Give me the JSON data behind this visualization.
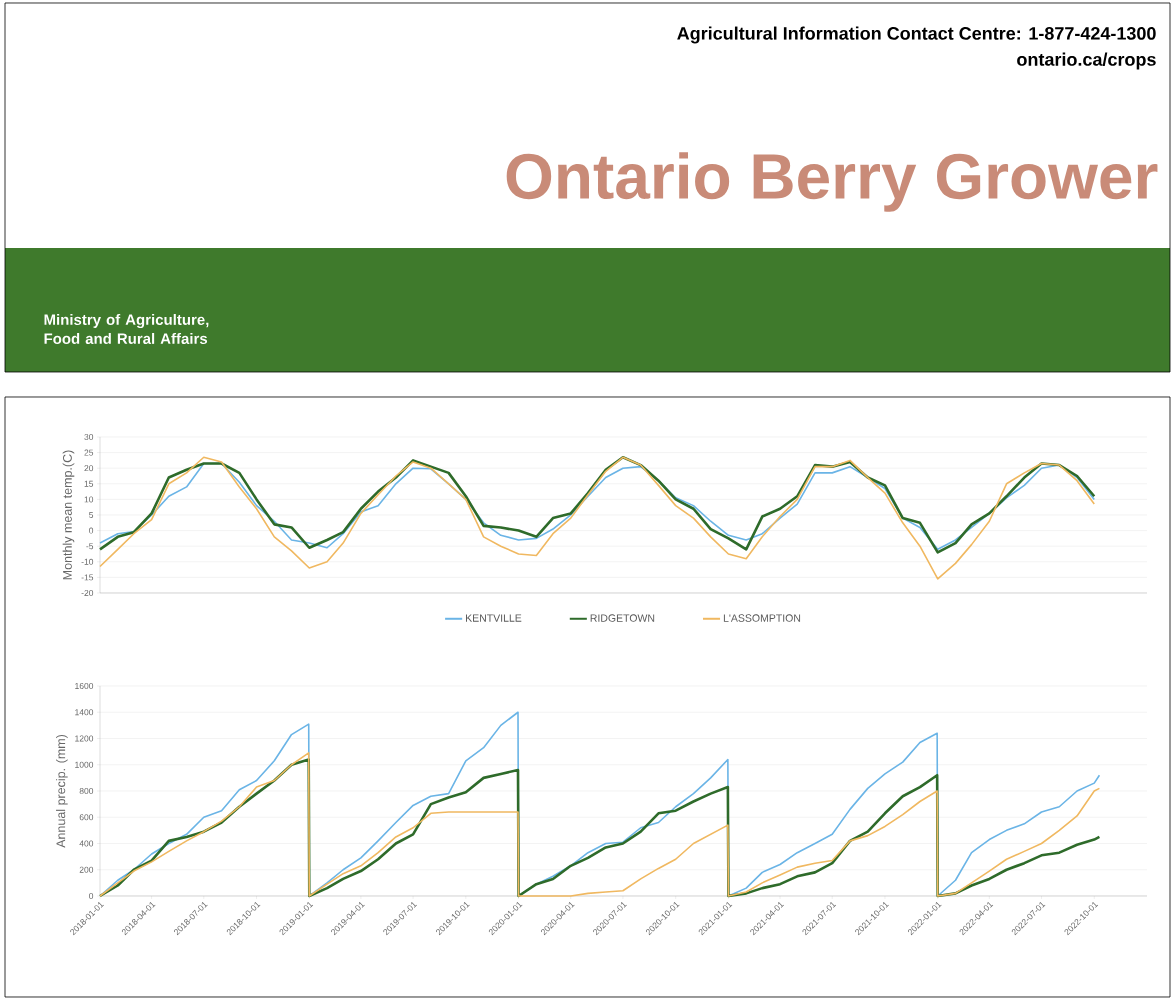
{
  "chart_data": [
    {
      "type": "line",
      "title": "Ontario Berry Grower",
      "annotations": [
        "Agricultural Information Contact Centre: 1-877-424-1300",
        "ontario.ca/crops",
        "Ministry of Agriculture, Food and Rural Affairs"
      ],
      "ylabel": "Monthly mean temp.(C)",
      "x": [
        "2018-01",
        "2018-02",
        "2018-03",
        "2018-04",
        "2018-05",
        "2018-06",
        "2018-07",
        "2018-08",
        "2018-09",
        "2018-10",
        "2018-11",
        "2018-12",
        "2019-01",
        "2019-02",
        "2019-03",
        "2019-04",
        "2019-05",
        "2019-06",
        "2019-07",
        "2019-08",
        "2019-09",
        "2019-10",
        "2019-11",
        "2019-12",
        "2020-01",
        "2020-02",
        "2020-03",
        "2020-04",
        "2020-05",
        "2020-06",
        "2020-07",
        "2020-08",
        "2020-09",
        "2020-10",
        "2020-11",
        "2020-12",
        "2021-01",
        "2021-02",
        "2021-03",
        "2021-04",
        "2021-05",
        "2021-06",
        "2021-07",
        "2021-08",
        "2021-09",
        "2021-10",
        "2021-11",
        "2021-12",
        "2022-01",
        "2022-02",
        "2022-03",
        "2022-04",
        "2022-05",
        "2022-06",
        "2022-07",
        "2022-08",
        "2022-09",
        "2022-10"
      ],
      "xlim": [
        "2018-01-01",
        "2023-01-01"
      ],
      "ylim": [
        -20,
        30
      ],
      "yticks": [
        -20,
        -15,
        -10,
        -5,
        0,
        5,
        10,
        15,
        20,
        25,
        30
      ],
      "grid": "y",
      "legend": "bottom",
      "tick_labels": "y",
      "series": [
        {
          "name": "KENTVILLE",
          "color": "#6ab4e6",
          "values": [
            -4,
            -1,
            -0.3,
            5,
            11,
            14,
            21.5,
            21.5,
            15.5,
            8,
            3,
            -3,
            -4,
            -5.5,
            -1,
            6,
            8,
            15,
            20,
            19.8,
            15,
            10,
            2.5,
            -1.5,
            -3,
            -2.5,
            0.5,
            5,
            11,
            17,
            20,
            20.5,
            16,
            10.5,
            8,
            3,
            -1.5,
            -3,
            -1,
            4,
            8.5,
            18.5,
            18.5,
            20.5,
            17,
            13.5,
            4,
            1,
            -6,
            -3,
            1,
            5.5,
            10.5,
            14.5,
            20,
            21,
            17,
            10
          ]
        },
        {
          "name": "RIDGETOWN",
          "color": "#2e6b2a",
          "values": [
            -6,
            -2,
            -0.5,
            5.5,
            17,
            19.5,
            21.5,
            21.5,
            18.5,
            10,
            2,
            1,
            -5.5,
            -3,
            -0.5,
            7,
            12.5,
            17,
            22.5,
            20.5,
            18.5,
            11,
            1.5,
            1,
            0,
            -2,
            4,
            5.5,
            12,
            19.5,
            23.5,
            21,
            16,
            10,
            7,
            0.5,
            -2.5,
            -6,
            4.5,
            7,
            11,
            21,
            20.5,
            22,
            17,
            14.5,
            4,
            2.5,
            -7,
            -4,
            2,
            5.5,
            11,
            17,
            21.5,
            21,
            17.5,
            11
          ]
        },
        {
          "name": "L'ASSOMPTION",
          "color": "#f0b860",
          "values": [
            -11.5,
            -6,
            -1,
            3.5,
            15,
            18.5,
            23.5,
            22,
            14,
            7,
            -2,
            -6.5,
            -12,
            -10,
            -4,
            5.5,
            11.5,
            17.5,
            22,
            20,
            15,
            10,
            -2,
            -5,
            -7.5,
            -8,
            -1,
            4,
            11.5,
            19,
            23.5,
            21,
            14.5,
            8,
            4,
            -2,
            -7.5,
            -9,
            -2,
            4.5,
            10,
            20.5,
            20.5,
            22.5,
            17,
            12,
            2.5,
            -5,
            -15.5,
            -10.5,
            -4.5,
            3,
            15,
            18.5,
            21.5,
            21,
            16,
            8.5
          ]
        }
      ]
    },
    {
      "type": "line",
      "ylabel": "Annual precip. (mm)",
      "x": [
        "2018-01-01",
        "2018-02-01",
        "2018-03-01",
        "2018-04-01",
        "2018-05-01",
        "2018-06-01",
        "2018-07-01",
        "2018-08-01",
        "2018-09-01",
        "2018-10-01",
        "2018-11-01",
        "2018-12-01",
        "2018-12-31",
        "2019-01-01",
        "2019-02-01",
        "2019-03-01",
        "2019-04-01",
        "2019-05-01",
        "2019-06-01",
        "2019-07-01",
        "2019-08-01",
        "2019-09-01",
        "2019-10-01",
        "2019-11-01",
        "2019-12-01",
        "2019-12-31",
        "2020-01-01",
        "2020-02-01",
        "2020-03-01",
        "2020-04-01",
        "2020-05-01",
        "2020-06-01",
        "2020-07-01",
        "2020-08-01",
        "2020-09-01",
        "2020-10-01",
        "2020-11-01",
        "2020-12-01",
        "2020-12-31",
        "2021-01-01",
        "2021-02-01",
        "2021-03-01",
        "2021-04-01",
        "2021-05-01",
        "2021-06-01",
        "2021-07-01",
        "2021-08-01",
        "2021-09-01",
        "2021-10-01",
        "2021-11-01",
        "2021-12-01",
        "2021-12-31",
        "2022-01-01",
        "2022-02-01",
        "2022-03-01",
        "2022-04-01",
        "2022-05-01",
        "2022-06-01",
        "2022-07-01",
        "2022-08-01",
        "2022-09-01",
        "2022-10-01",
        "2022-10-10"
      ],
      "xlim": [
        "2018-01-01",
        "2023-01-01"
      ],
      "xticks": [
        "2018-01-01",
        "2018-04-01",
        "2018-07-01",
        "2018-10-01",
        "2019-01-01",
        "2019-04-01",
        "2019-07-01",
        "2019-10-01",
        "2020-01-01",
        "2020-04-01",
        "2020-07-01",
        "2020-10-01",
        "2021-01-01",
        "2021-04-01",
        "2021-07-01",
        "2021-10-01",
        "2022-01-01",
        "2022-04-01",
        "2022-07-01",
        "2022-10-01"
      ],
      "ylim": [
        0,
        1600
      ],
      "yticks": [
        0,
        200,
        400,
        600,
        800,
        1000,
        1200,
        1400,
        1600
      ],
      "grid": "y",
      "series": [
        {
          "color": "#6ab4e6",
          "values": [
            0,
            120,
            200,
            320,
            400,
            470,
            600,
            650,
            810,
            880,
            1030,
            1230,
            1310,
            0,
            100,
            200,
            290,
            420,
            560,
            690,
            760,
            780,
            1030,
            1130,
            1300,
            1400,
            0,
            90,
            150,
            230,
            330,
            400,
            410,
            520,
            560,
            680,
            780,
            900,
            1040,
            0,
            60,
            180,
            240,
            330,
            400,
            470,
            660,
            820,
            930,
            1020,
            1170,
            1240,
            0,
            120,
            330,
            430,
            500,
            550,
            640,
            680,
            800,
            860,
            920
          ]
        },
        {
          "color": "#2e6b2a",
          "values": [
            0,
            80,
            200,
            270,
            420,
            450,
            490,
            560,
            680,
            780,
            880,
            1000,
            1040,
            0,
            60,
            130,
            190,
            280,
            400,
            470,
            700,
            750,
            790,
            900,
            930,
            960,
            0,
            90,
            130,
            230,
            290,
            370,
            400,
            490,
            630,
            650,
            720,
            780,
            830,
            0,
            20,
            60,
            90,
            150,
            180,
            250,
            420,
            490,
            630,
            760,
            830,
            920,
            0,
            20,
            80,
            130,
            200,
            250,
            310,
            330,
            390,
            430,
            450
          ]
        },
        {
          "color": "#f0b860",
          "values": [
            0,
            100,
            190,
            260,
            340,
            420,
            490,
            570,
            680,
            830,
            880,
            1000,
            1090,
            0,
            90,
            170,
            230,
            330,
            450,
            520,
            630,
            640,
            640,
            640,
            640,
            640,
            0,
            0,
            0,
            0,
            20,
            30,
            40,
            130,
            210,
            280,
            400,
            470,
            540,
            0,
            30,
            100,
            160,
            220,
            250,
            270,
            420,
            460,
            530,
            620,
            720,
            800,
            0,
            20,
            100,
            190,
            280,
            340,
            400,
            500,
            610,
            800,
            820
          ]
        }
      ]
    }
  ]
}
